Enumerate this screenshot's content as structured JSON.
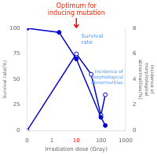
{
  "chart_data": {
    "type": "line",
    "xlabel": "Irradiation dose (Gray)",
    "ylabel": "Survival rate(%)",
    "y2label": "Incidence of\nmorphological\nabnormalities(%)",
    "series": [
      {
        "x": [
          0,
          2,
          10,
          100,
          150
        ],
        "values": [
          100,
          96,
          70,
          13,
          5
        ],
        "color": "#0000cc",
        "marker": "circle",
        "line_style": "solid"
      },
      {
        "x": [
          0,
          10,
          40,
          100,
          150
        ],
        "values": [
          0,
          6.0,
          4.4,
          1.2,
          2.8
        ],
        "color": "#0000cc",
        "marker": "open_circle",
        "line_style": "solid",
        "axis": "y2"
      }
    ],
    "log": "x",
    "xlim": [
      0,
      1000
    ],
    "xticks": [
      0,
      1,
      10,
      100,
      1000
    ],
    "ylim": [
      0,
      100
    ],
    "yticks": [
      0,
      25,
      50,
      75,
      100
    ],
    "y2lim": [
      0,
      8
    ],
    "y2ticks": [
      0,
      2,
      4,
      6,
      8
    ],
    "grid": false,
    "annotations": [
      {
        "text": "Optimum for\ninducing mutation",
        "x": 10,
        "color": "#ff2200",
        "arrow_color": "red"
      },
      {
        "text": "Survival\nrate",
        "color": "#5599ff"
      },
      {
        "text": "Incidence of\nmorphological\nabnormalities",
        "color": "#5599ff"
      }
    ]
  }
}
